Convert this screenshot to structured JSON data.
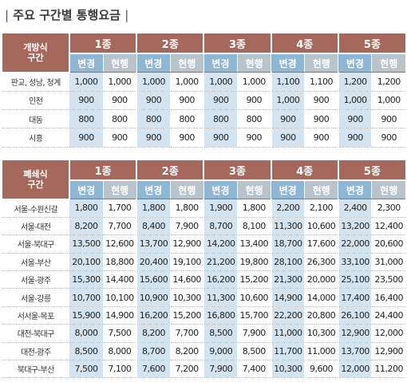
{
  "title": "주요 구간별 통행요금",
  "title_bar_left": "|",
  "title_bar_right": "|",
  "colors": {
    "header_brown": "#a5685d",
    "header_blue": "#8fb6d3",
    "header_gray": "#b9c3cb",
    "new_cell": "#d3e3ef"
  },
  "sub_headers": {
    "new": "변경",
    "current": "현행"
  },
  "classes": [
    "1종",
    "2종",
    "3종",
    "4종",
    "5종"
  ],
  "open_system": {
    "header_label": "개방식\n구간",
    "rows": [
      {
        "label": "판교, 성남, 청계",
        "values": [
          "1,000",
          "1,000",
          "1,000",
          "1,000",
          "1,000",
          "1,000",
          "1,100",
          "1,100",
          "1,200",
          "1,200"
        ]
      },
      {
        "label": "인천",
        "values": [
          "900",
          "900",
          "900",
          "900",
          "900",
          "900",
          "1,000",
          "900",
          "1,000",
          "1,000"
        ]
      },
      {
        "label": "대동",
        "values": [
          "800",
          "800",
          "800",
          "800",
          "800",
          "800",
          "900",
          "900",
          "900",
          "900"
        ]
      },
      {
        "label": "시흥",
        "values": [
          "900",
          "900",
          "900",
          "900",
          "900",
          "900",
          "900",
          "900",
          "900",
          "900"
        ]
      }
    ]
  },
  "closed_system": {
    "header_label": "폐쇄식\n구간",
    "rows": [
      {
        "label": "서울-수원신갈",
        "values": [
          "1,800",
          "1,700",
          "1,800",
          "1,800",
          "1,900",
          "1,800",
          "2,200",
          "2,100",
          "2,400",
          "2,300"
        ]
      },
      {
        "label": "서울-대전",
        "values": [
          "8,200",
          "7,700",
          "8,400",
          "7,900",
          "8,700",
          "8,100",
          "11,300",
          "10,600",
          "13,200",
          "12,400"
        ]
      },
      {
        "label": "서울-북대구",
        "values": [
          "13,500",
          "12,600",
          "13,700",
          "12,900",
          "14,200",
          "13,400",
          "18,700",
          "17,600",
          "22,000",
          "20,600"
        ]
      },
      {
        "label": "서울-부산",
        "values": [
          "20,100",
          "18,800",
          "20,400",
          "19,100",
          "21,200",
          "19,800",
          "28,100",
          "26,300",
          "33,100",
          "31,000"
        ]
      },
      {
        "label": "서울-광주",
        "values": [
          "15,300",
          "14,400",
          "15,600",
          "14,600",
          "16,200",
          "15,200",
          "21,300",
          "20,000",
          "25,100",
          "23,500"
        ]
      },
      {
        "label": "서울-강릉",
        "values": [
          "10,700",
          "10,100",
          "10,900",
          "10,300",
          "11,300",
          "10,600",
          "14,900",
          "14,000",
          "17,400",
          "16,400"
        ]
      },
      {
        "label": "서서울-목포",
        "values": [
          "15,900",
          "14,900",
          "16,200",
          "15,200",
          "16,800",
          "15,700",
          "22,200",
          "20,800",
          "26,100",
          "24,400"
        ]
      },
      {
        "label": "대전-북대구",
        "values": [
          "8,000",
          "7,500",
          "8,200",
          "7,700",
          "8,500",
          "7,900",
          "11,000",
          "10,300",
          "12,900",
          "12,000"
        ]
      },
      {
        "label": "대전-광주",
        "values": [
          "8,500",
          "8,000",
          "8,700",
          "8,200",
          "9,000",
          "8,500",
          "11,700",
          "11,000",
          "13,700",
          "12,900"
        ]
      },
      {
        "label": "북대구-부산",
        "values": [
          "7,500",
          "7,100",
          "7,600",
          "7,200",
          "7,900",
          "7,400",
          "10,300",
          "9,600",
          "12,000",
          "11,200"
        ]
      }
    ]
  }
}
